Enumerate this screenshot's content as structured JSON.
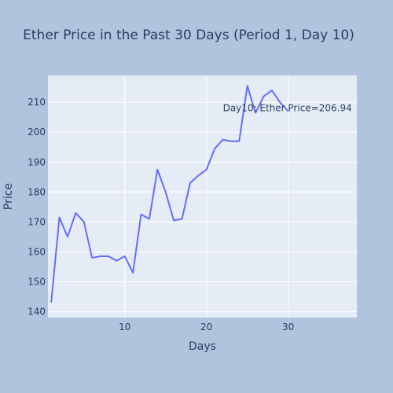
{
  "chart_data": {
    "type": "line",
    "title": "Ether Price in the Past 30 Days (Period 1, Day 10)",
    "xlabel": "Days",
    "ylabel": "Price",
    "xlim": [
      0.6,
      38.4
    ],
    "ylim": [
      138,
      219
    ],
    "xticks": [
      10,
      20,
      30
    ],
    "yticks": [
      140,
      150,
      160,
      170,
      180,
      190,
      200,
      210
    ],
    "grid": true,
    "series": [
      {
        "color": "#636efa",
        "x": [
          1,
          2,
          3,
          4,
          5,
          6,
          7,
          8,
          9,
          10,
          11,
          12,
          13,
          14,
          15,
          16,
          17,
          18,
          19,
          20,
          21,
          22,
          23,
          24,
          25,
          26,
          27,
          28,
          29,
          30
        ],
        "y": [
          143,
          171.5,
          165,
          173,
          170,
          158,
          158.5,
          158.5,
          157,
          158.5,
          153,
          172.5,
          171,
          187.5,
          180,
          170.5,
          171,
          183,
          185.5,
          187.5,
          194.5,
          197.5,
          197,
          197,
          215.5,
          206.5,
          212,
          214,
          210,
          207
        ]
      }
    ],
    "annotation": {
      "text": "Day10: Ether Price=206.94",
      "x": 30,
      "y": 206.94
    }
  }
}
